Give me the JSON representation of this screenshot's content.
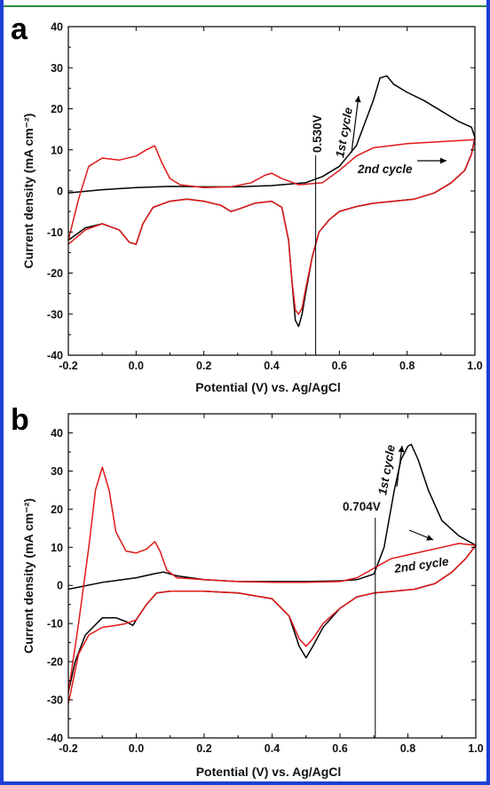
{
  "chart_data": [
    {
      "panel": "a",
      "type": "line",
      "xlabel": "Potential (V) vs. Ag/AgCl",
      "ylabel": "Current density (mA cm⁻²)",
      "xlim": [
        -0.2,
        1.0
      ],
      "ylim": [
        -40,
        40
      ],
      "xticks": [
        "-0.2",
        "0.0",
        "0.2",
        "0.4",
        "0.6",
        "0.8",
        "1.0"
      ],
      "yticks": [
        "-40",
        "-30",
        "-20",
        "-10",
        "0",
        "10",
        "20",
        "30",
        "40"
      ],
      "annotations": {
        "marker_label": "0.530V",
        "marker_x": 0.53,
        "first_cycle": "1st cycle",
        "second_cycle": "2nd cycle"
      },
      "series": [
        {
          "color": "#000000",
          "x": [
            -0.2,
            -0.1,
            0.0,
            0.1,
            0.2,
            0.3,
            0.4,
            0.5,
            0.55,
            0.6,
            0.65,
            0.7,
            0.72,
            0.74,
            0.76,
            0.8,
            0.85,
            0.9,
            0.95,
            0.99,
            1.0,
            0.99,
            0.97,
            0.93,
            0.88,
            0.82,
            0.76,
            0.7,
            0.65,
            0.6,
            0.57,
            0.54,
            0.52,
            0.5,
            0.49,
            0.48,
            0.47,
            0.46,
            0.45,
            0.43,
            0.4,
            0.35,
            0.3,
            0.28,
            0.25,
            0.2,
            0.15,
            0.1,
            0.05,
            0.02,
            0.0,
            -0.02,
            -0.05,
            -0.1,
            -0.15,
            -0.2
          ],
          "y": [
            -0.5,
            0.3,
            0.8,
            1.1,
            1.0,
            1.0,
            1.3,
            2.0,
            3.5,
            6.0,
            11.0,
            22.0,
            27.5,
            28.0,
            26.0,
            24.0,
            22.0,
            19.5,
            17.0,
            15.5,
            13.0,
            9.0,
            5.0,
            2.0,
            -0.5,
            -2.0,
            -2.5,
            -3.0,
            -3.8,
            -5.0,
            -7.0,
            -10.0,
            -16.0,
            -25.0,
            -30.0,
            -33.0,
            -31.5,
            -22.0,
            -12.0,
            -4.0,
            -2.5,
            -3.0,
            -4.5,
            -5.0,
            -3.5,
            -2.5,
            -2.0,
            -2.5,
            -4.0,
            -8.0,
            -13.0,
            -12.5,
            -9.5,
            -8.0,
            -9.0,
            -12.0
          ]
        },
        {
          "color": "#e01818",
          "x": [
            -0.2,
            -0.17,
            -0.14,
            -0.1,
            -0.05,
            0.0,
            0.03,
            0.055,
            0.075,
            0.1,
            0.13,
            0.2,
            0.28,
            0.34,
            0.38,
            0.4,
            0.43,
            0.48,
            0.55,
            0.6,
            0.65,
            0.7,
            0.75,
            0.8,
            0.9,
            1.0,
            0.99,
            0.97,
            0.93,
            0.88,
            0.82,
            0.76,
            0.7,
            0.65,
            0.6,
            0.57,
            0.54,
            0.52,
            0.5,
            0.49,
            0.48,
            0.47,
            0.46,
            0.45,
            0.43,
            0.4,
            0.35,
            0.3,
            0.28,
            0.25,
            0.2,
            0.15,
            0.1,
            0.05,
            0.02,
            0.0,
            -0.02,
            -0.05,
            -0.1,
            -0.15,
            -0.2
          ],
          "y": [
            -12.0,
            -2.0,
            6.0,
            8.0,
            7.5,
            8.5,
            10.0,
            11.0,
            7.0,
            3.0,
            1.5,
            0.8,
            1.0,
            2.0,
            3.8,
            4.3,
            3.0,
            1.5,
            2.0,
            5.0,
            8.5,
            10.5,
            11.0,
            11.5,
            12.0,
            12.5,
            9.0,
            5.0,
            2.0,
            -0.5,
            -2.0,
            -2.5,
            -3.0,
            -3.8,
            -5.0,
            -7.0,
            -10.0,
            -16.0,
            -24.0,
            -28.5,
            -30.0,
            -29.0,
            -22.0,
            -12.0,
            -4.0,
            -2.5,
            -3.0,
            -4.5,
            -5.0,
            -3.5,
            -2.5,
            -2.0,
            -2.5,
            -4.0,
            -8.0,
            -13.0,
            -12.5,
            -9.5,
            -8.0,
            -9.5,
            -13.0
          ]
        }
      ]
    },
    {
      "panel": "b",
      "type": "line",
      "xlabel": "Potential (V) vs. Ag/AgCl",
      "ylabel": "Current density (mA cm⁻²)",
      "xlim": [
        -0.2,
        1.0
      ],
      "ylim": [
        -40,
        45
      ],
      "xticks": [
        "-0.2",
        "0.0",
        "0.2",
        "0.4",
        "0.6",
        "0.8",
        "1.0"
      ],
      "yticks": [
        "-40",
        "-30",
        "-20",
        "-10",
        "0",
        "10",
        "20",
        "30",
        "40"
      ],
      "annotations": {
        "marker_label": "0.704V",
        "marker_x": 0.704,
        "first_cycle": "1st cycle",
        "second_cycle": "2nd cycle"
      },
      "series": [
        {
          "color": "#000000",
          "x": [
            -0.2,
            -0.1,
            0.0,
            0.05,
            0.08,
            0.12,
            0.2,
            0.3,
            0.4,
            0.5,
            0.6,
            0.65,
            0.7,
            0.73,
            0.76,
            0.78,
            0.8,
            0.81,
            0.83,
            0.86,
            0.9,
            0.95,
            1.0,
            0.97,
            0.93,
            0.88,
            0.82,
            0.76,
            0.7,
            0.65,
            0.6,
            0.55,
            0.52,
            0.5,
            0.48,
            0.45,
            0.4,
            0.3,
            0.2,
            0.1,
            0.06,
            0.03,
            0.0,
            -0.01,
            -0.03,
            -0.06,
            -0.1,
            -0.15,
            -0.18,
            -0.2
          ],
          "y": [
            -1.0,
            0.8,
            2.0,
            3.0,
            3.5,
            2.5,
            1.5,
            1.0,
            1.0,
            1.0,
            1.2,
            1.5,
            3.0,
            10.0,
            25.0,
            33.0,
            36.5,
            37.0,
            33.0,
            25.0,
            17.0,
            13.0,
            10.5,
            7.0,
            3.5,
            0.5,
            -1.0,
            -1.5,
            -2.0,
            -3.0,
            -6.0,
            -11.0,
            -16.0,
            -19.0,
            -16.0,
            -8.0,
            -3.5,
            -2.0,
            -1.5,
            -1.5,
            -2.0,
            -5.0,
            -9.0,
            -10.5,
            -9.5,
            -8.5,
            -8.5,
            -13.0,
            -20.0,
            -28.0
          ]
        },
        {
          "color": "#e01818",
          "x": [
            -0.2,
            -0.17,
            -0.14,
            -0.12,
            -0.1,
            -0.08,
            -0.06,
            -0.03,
            0.0,
            0.03,
            0.055,
            0.07,
            0.09,
            0.12,
            0.2,
            0.3,
            0.4,
            0.5,
            0.6,
            0.65,
            0.7,
            0.75,
            0.8,
            0.85,
            0.9,
            0.95,
            1.0,
            0.97,
            0.93,
            0.88,
            0.82,
            0.76,
            0.7,
            0.65,
            0.6,
            0.55,
            0.52,
            0.5,
            0.48,
            0.45,
            0.4,
            0.3,
            0.2,
            0.1,
            0.06,
            0.03,
            0.0,
            -0.03,
            -0.06,
            -0.1,
            -0.14,
            -0.17,
            -0.2
          ],
          "y": [
            -28.0,
            -10.0,
            10.0,
            25.0,
            31.0,
            25.0,
            14.0,
            9.0,
            8.5,
            9.5,
            11.5,
            9.0,
            4.0,
            2.0,
            1.5,
            1.0,
            0.8,
            0.8,
            1.0,
            2.0,
            4.5,
            7.0,
            8.0,
            9.0,
            10.0,
            11.0,
            10.5,
            7.0,
            3.5,
            0.5,
            -1.0,
            -1.5,
            -2.0,
            -3.0,
            -6.0,
            -10.0,
            -14.0,
            -16.0,
            -14.0,
            -8.0,
            -3.5,
            -2.0,
            -1.5,
            -1.5,
            -2.0,
            -5.0,
            -9.0,
            -10.0,
            -10.5,
            -11.0,
            -13.0,
            -18.0,
            -31.0
          ]
        }
      ]
    }
  ]
}
